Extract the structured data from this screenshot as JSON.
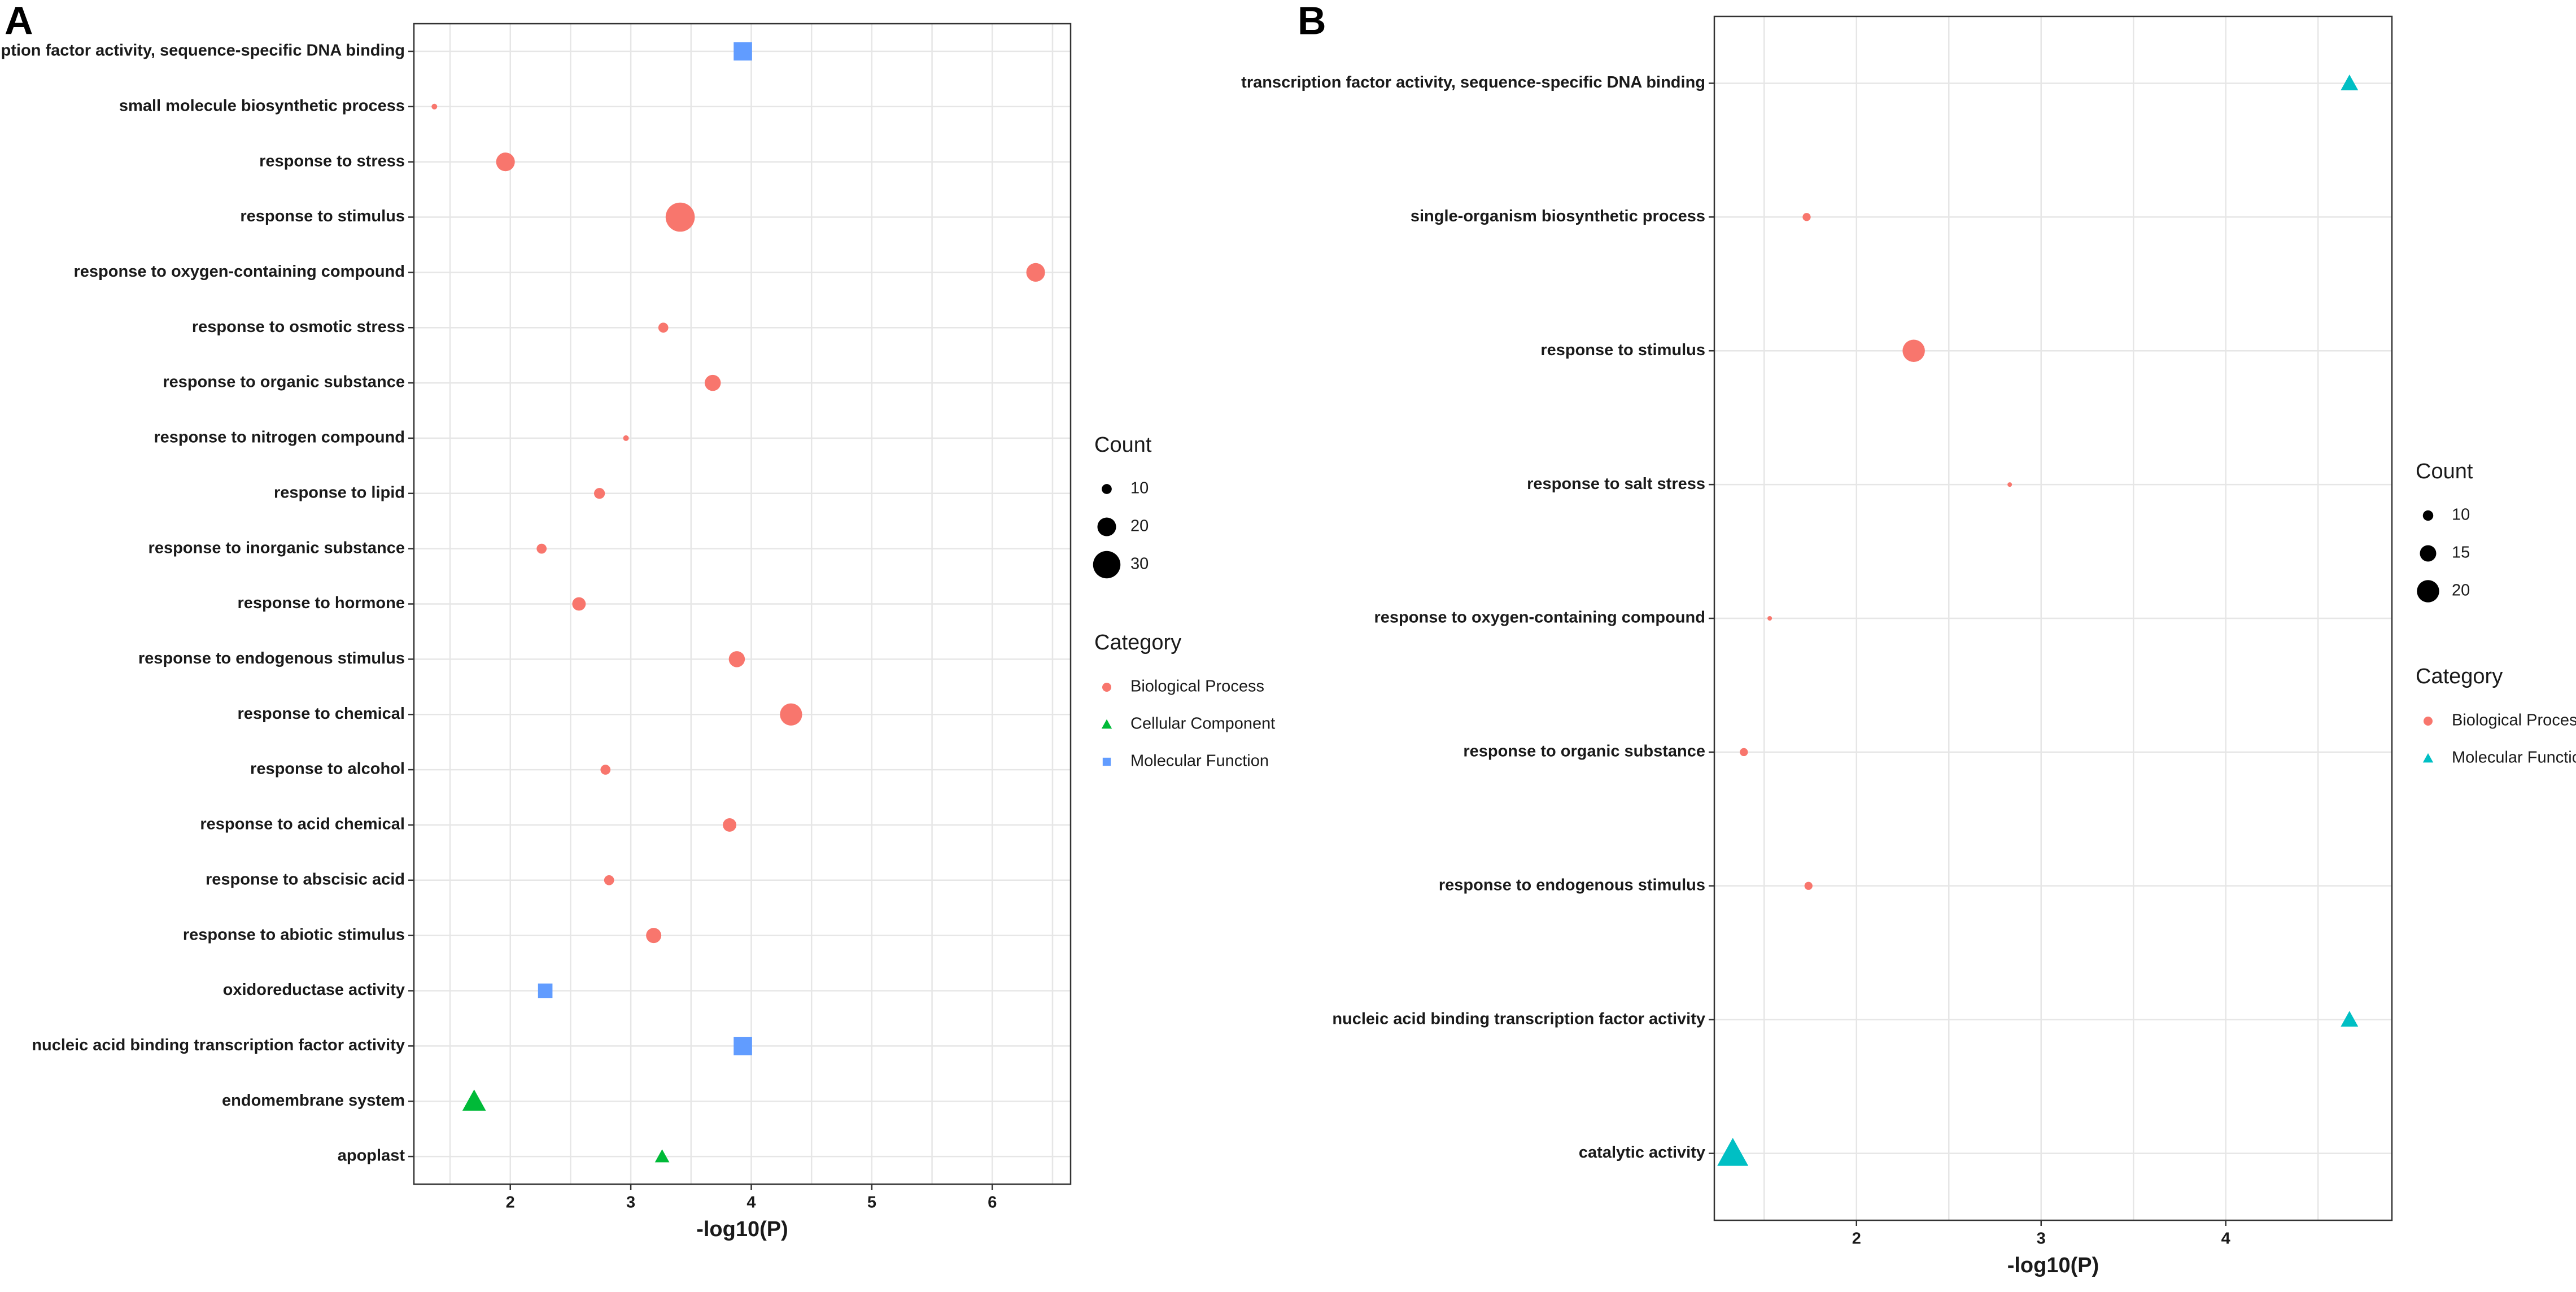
{
  "colors": {
    "Biological Process": "#F8766D",
    "Cellular Component": "#00BA38",
    "Molecular Function": "#619CFF",
    "Molecular Function (B)": "#00BFC4"
  },
  "chart_data": [
    {
      "panel": "A",
      "type": "scatter",
      "xlabel": "-log10(P)",
      "xticks": [
        2,
        3,
        4,
        5,
        6
      ],
      "xlim": [
        1.2,
        6.65
      ],
      "size_legend": {
        "title": "Count",
        "values": [
          10,
          20,
          30
        ]
      },
      "category_legend": {
        "title": "Category",
        "items": [
          "Biological Process",
          "Cellular Component",
          "Molecular Function"
        ]
      },
      "points": [
        {
          "term": "transcription factor activity, sequence-specific DNA binding",
          "x": 3.93,
          "count": 22,
          "category": "Molecular Function"
        },
        {
          "term": "small molecule biosynthetic process",
          "x": 1.37,
          "count": 5,
          "category": "Biological Process"
        },
        {
          "term": "response to stress",
          "x": 1.96,
          "count": 20,
          "category": "Biological Process"
        },
        {
          "term": "response to stimulus",
          "x": 3.41,
          "count": 32,
          "category": "Biological Process"
        },
        {
          "term": "response to oxygen-containing compound",
          "x": 6.36,
          "count": 20,
          "category": "Biological Process"
        },
        {
          "term": "response to osmotic stress",
          "x": 3.27,
          "count": 10,
          "category": "Biological Process"
        },
        {
          "term": "response to organic substance",
          "x": 3.68,
          "count": 17,
          "category": "Biological Process"
        },
        {
          "term": "response to nitrogen compound",
          "x": 2.96,
          "count": 5,
          "category": "Biological Process"
        },
        {
          "term": "response to lipid",
          "x": 2.74,
          "count": 11,
          "category": "Biological Process"
        },
        {
          "term": "response to inorganic substance",
          "x": 2.26,
          "count": 10,
          "category": "Biological Process"
        },
        {
          "term": "response to hormone",
          "x": 2.57,
          "count": 14,
          "category": "Biological Process"
        },
        {
          "term": "response to endogenous stimulus",
          "x": 3.88,
          "count": 17,
          "category": "Biological Process"
        },
        {
          "term": "response to chemical",
          "x": 4.33,
          "count": 24,
          "category": "Biological Process"
        },
        {
          "term": "response to alcohol",
          "x": 2.79,
          "count": 10,
          "category": "Biological Process"
        },
        {
          "term": "response to acid chemical",
          "x": 3.82,
          "count": 14,
          "category": "Biological Process"
        },
        {
          "term": "response to abscisic acid",
          "x": 2.82,
          "count": 10,
          "category": "Biological Process"
        },
        {
          "term": "response to abiotic stimulus",
          "x": 3.19,
          "count": 16,
          "category": "Biological Process"
        },
        {
          "term": "oxidoreductase activity",
          "x": 2.29,
          "count": 17,
          "category": "Molecular Function"
        },
        {
          "term": "nucleic acid binding transcription factor activity",
          "x": 3.93,
          "count": 22,
          "category": "Molecular Function"
        },
        {
          "term": "endomembrane system",
          "x": 1.7,
          "count": 22,
          "category": "Cellular Component"
        },
        {
          "term": "apoplast",
          "x": 3.26,
          "count": 13,
          "category": "Cellular Component"
        }
      ]
    },
    {
      "panel": "B",
      "type": "scatter",
      "xlabel": "-log10(P)",
      "xticks": [
        2,
        3,
        4
      ],
      "xlim": [
        1.23,
        4.9
      ],
      "size_legend": {
        "title": "Count",
        "values": [
          10,
          15,
          20
        ]
      },
      "category_legend": {
        "title": "Category",
        "items": [
          "Biological Process",
          "Molecular Function"
        ]
      },
      "points": [
        {
          "term": "transcription factor activity, sequence-specific DNA binding",
          "x": 4.67,
          "count": 14,
          "category": "Molecular Function"
        },
        {
          "term": "single-organism biosynthetic process",
          "x": 1.73,
          "count": 8,
          "category": "Biological Process"
        },
        {
          "term": "response to stimulus",
          "x": 2.31,
          "count": 20,
          "category": "Biological Process"
        },
        {
          "term": "response to salt stress",
          "x": 2.83,
          "count": 5,
          "category": "Biological Process"
        },
        {
          "term": "response to oxygen-containing compound",
          "x": 1.53,
          "count": 5,
          "category": "Biological Process"
        },
        {
          "term": "response to organic substance",
          "x": 1.39,
          "count": 8,
          "category": "Biological Process"
        },
        {
          "term": "response to endogenous stimulus",
          "x": 1.74,
          "count": 8,
          "category": "Biological Process"
        },
        {
          "term": "nucleic acid binding transcription factor activity",
          "x": 4.67,
          "count": 14,
          "category": "Molecular Function"
        },
        {
          "term": "catalytic activity",
          "x": 1.33,
          "count": 24,
          "category": "Molecular Function"
        }
      ]
    }
  ]
}
